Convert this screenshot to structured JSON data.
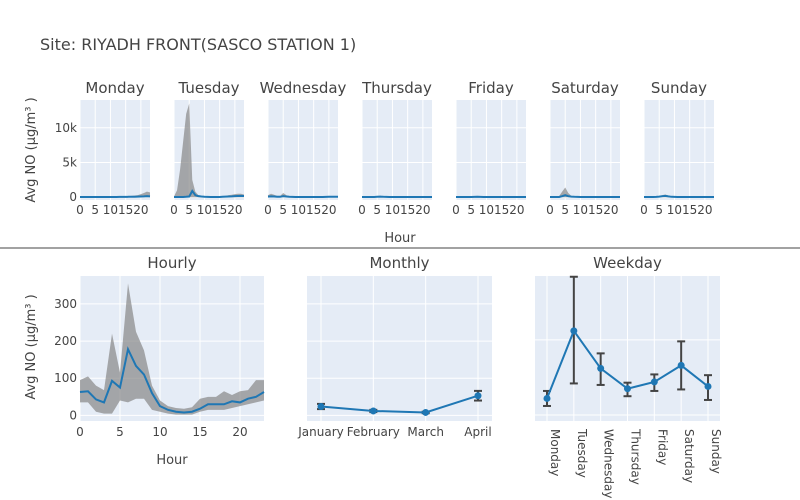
{
  "title": "Site: RIYADH FRONT(SASCO STATION 1)",
  "colors": {
    "plot_bg": "#e5ecf6",
    "grid": "#ffffff",
    "line": "#1f77b4",
    "band": "#888888",
    "error": "#444444",
    "divider": "#444444"
  },
  "chart_data": [
    {
      "type": "line",
      "layout": "small-multiples",
      "ylabel": "Avg NO (µg/m³ )",
      "xlabel": "Hour",
      "x_ticks": [
        0,
        5,
        10,
        15,
        20
      ],
      "y_ticks": [
        0,
        5000,
        10000
      ],
      "y_tick_labels": [
        "0",
        "5k",
        "10k"
      ],
      "ylim": [
        -400,
        14000
      ],
      "xlim": [
        0,
        23
      ],
      "panels": [
        {
          "name": "Monday",
          "values": [
            40,
            40,
            40,
            40,
            40,
            40,
            40,
            40,
            40,
            40,
            40,
            40,
            40,
            50,
            50,
            50,
            60,
            60,
            60,
            80,
            100,
            120,
            150,
            120
          ],
          "upper": [
            80,
            80,
            80,
            80,
            80,
            80,
            80,
            80,
            80,
            80,
            80,
            80,
            80,
            100,
            100,
            120,
            150,
            200,
            250,
            300,
            450,
            600,
            800,
            700
          ],
          "lower": [
            0,
            0,
            0,
            0,
            0,
            0,
            0,
            0,
            0,
            0,
            0,
            0,
            0,
            0,
            0,
            0,
            0,
            0,
            0,
            0,
            0,
            0,
            0,
            0
          ]
        },
        {
          "name": "Tuesday",
          "values": [
            40,
            40,
            40,
            40,
            60,
            100,
            900,
            300,
            150,
            100,
            60,
            50,
            40,
            40,
            40,
            40,
            60,
            80,
            100,
            120,
            150,
            180,
            200,
            180
          ],
          "upper": [
            100,
            1000,
            4000,
            8000,
            12000,
            13500,
            2500,
            800,
            300,
            200,
            120,
            80,
            60,
            60,
            60,
            80,
            150,
            200,
            300,
            350,
            450,
            500,
            500,
            400
          ],
          "lower": [
            0,
            0,
            0,
            0,
            0,
            0,
            0,
            0,
            0,
            0,
            0,
            0,
            0,
            0,
            0,
            0,
            0,
            0,
            0,
            0,
            0,
            0,
            0,
            0
          ]
        },
        {
          "name": "Wednesday",
          "values": [
            80,
            120,
            100,
            60,
            60,
            150,
            100,
            60,
            50,
            40,
            40,
            30,
            30,
            30,
            30,
            30,
            40,
            40,
            40,
            50,
            60,
            60,
            60,
            60
          ],
          "upper": [
            300,
            500,
            350,
            200,
            200,
            600,
            300,
            150,
            100,
            80,
            80,
            60,
            60,
            60,
            60,
            60,
            80,
            80,
            80,
            100,
            120,
            120,
            120,
            120
          ],
          "lower": [
            0,
            0,
            0,
            0,
            0,
            0,
            0,
            0,
            0,
            0,
            0,
            0,
            0,
            0,
            0,
            0,
            0,
            0,
            0,
            0,
            0,
            0,
            0,
            0
          ]
        },
        {
          "name": "Thursday",
          "values": [
            40,
            40,
            40,
            40,
            40,
            60,
            80,
            60,
            50,
            40,
            40,
            40,
            30,
            30,
            30,
            30,
            30,
            40,
            40,
            40,
            40,
            40,
            40,
            40
          ],
          "upper": [
            80,
            80,
            80,
            80,
            80,
            150,
            200,
            150,
            100,
            80,
            80,
            80,
            60,
            60,
            60,
            60,
            60,
            80,
            80,
            80,
            80,
            80,
            80,
            80
          ],
          "lower": [
            0,
            0,
            0,
            0,
            0,
            0,
            0,
            0,
            0,
            0,
            0,
            0,
            0,
            0,
            0,
            0,
            0,
            0,
            0,
            0,
            0,
            0,
            0,
            0
          ]
        },
        {
          "name": "Friday",
          "values": [
            40,
            40,
            40,
            40,
            40,
            40,
            50,
            60,
            50,
            40,
            40,
            40,
            30,
            30,
            30,
            30,
            30,
            40,
            40,
            40,
            40,
            40,
            40,
            40
          ],
          "upper": [
            80,
            80,
            80,
            80,
            80,
            80,
            100,
            150,
            100,
            80,
            80,
            80,
            60,
            60,
            60,
            60,
            60,
            80,
            80,
            80,
            80,
            80,
            80,
            80
          ],
          "lower": [
            0,
            0,
            0,
            0,
            0,
            0,
            0,
            0,
            0,
            0,
            0,
            0,
            0,
            0,
            0,
            0,
            0,
            0,
            0,
            0,
            0,
            0,
            0,
            0
          ]
        },
        {
          "name": "Saturday",
          "values": [
            40,
            40,
            40,
            40,
            150,
            300,
            150,
            80,
            60,
            50,
            40,
            40,
            40,
            30,
            30,
            30,
            30,
            40,
            40,
            40,
            40,
            40,
            40,
            40
          ],
          "upper": [
            80,
            80,
            80,
            150,
            800,
            1400,
            600,
            200,
            150,
            100,
            80,
            80,
            80,
            60,
            60,
            60,
            60,
            80,
            80,
            80,
            80,
            80,
            80,
            80
          ],
          "lower": [
            0,
            0,
            0,
            0,
            0,
            0,
            0,
            0,
            0,
            0,
            0,
            0,
            0,
            0,
            0,
            0,
            0,
            0,
            0,
            0,
            0,
            0,
            0,
            0
          ]
        },
        {
          "name": "Sunday",
          "values": [
            40,
            40,
            40,
            40,
            50,
            80,
            150,
            200,
            120,
            60,
            50,
            40,
            40,
            30,
            30,
            30,
            30,
            40,
            40,
            40,
            40,
            40,
            40,
            40
          ],
          "upper": [
            80,
            80,
            80,
            80,
            100,
            150,
            300,
            400,
            250,
            120,
            100,
            80,
            80,
            60,
            60,
            60,
            60,
            80,
            80,
            80,
            80,
            80,
            80,
            80
          ],
          "lower": [
            0,
            0,
            0,
            0,
            0,
            0,
            0,
            0,
            0,
            0,
            0,
            0,
            0,
            0,
            0,
            0,
            0,
            0,
            0,
            0,
            0,
            0,
            0,
            0
          ]
        }
      ]
    },
    {
      "type": "line",
      "title": "Hourly",
      "xlabel": "Hour",
      "ylabel": "Avg NO (µg/m³ )",
      "x": [
        0,
        1,
        2,
        3,
        4,
        5,
        6,
        7,
        8,
        9,
        10,
        11,
        12,
        13,
        14,
        15,
        16,
        17,
        18,
        19,
        20,
        21,
        22,
        23
      ],
      "values": [
        63,
        65,
        43,
        35,
        93,
        75,
        178,
        133,
        110,
        60,
        25,
        15,
        10,
        8,
        10,
        18,
        30,
        30,
        30,
        38,
        35,
        45,
        50,
        63
      ],
      "upper": [
        95,
        105,
        80,
        68,
        220,
        115,
        355,
        225,
        175,
        80,
        40,
        25,
        20,
        18,
        22,
        45,
        50,
        50,
        65,
        55,
        65,
        68,
        95,
        95
      ],
      "lower": [
        35,
        35,
        10,
        5,
        5,
        40,
        35,
        45,
        45,
        15,
        10,
        5,
        2,
        2,
        2,
        10,
        15,
        15,
        15,
        20,
        25,
        30,
        35,
        40
      ],
      "x_ticks": [
        0,
        5,
        10,
        15,
        20
      ],
      "y_ticks": [
        0,
        100,
        200,
        300
      ],
      "xlim": [
        0,
        23
      ],
      "ylim": [
        -15,
        375
      ]
    },
    {
      "type": "line",
      "title": "Monthly",
      "categories": [
        "January",
        "February",
        "March",
        "April"
      ],
      "values": [
        24,
        12,
        8,
        53
      ],
      "err_low": [
        7,
        3,
        2,
        13
      ],
      "err_high": [
        7,
        3,
        2,
        13
      ],
      "ylim": [
        -15,
        375
      ]
    },
    {
      "type": "line",
      "title": "Weekday",
      "categories": [
        "Monday",
        "Tuesday",
        "Wednesday",
        "Thursday",
        "Friday",
        "Saturday",
        "Sunday"
      ],
      "values": [
        22,
        112,
        62,
        35,
        44,
        66,
        38
      ],
      "err_low": [
        10,
        70,
        22,
        10,
        12,
        32,
        18
      ],
      "err_high": [
        10,
        72,
        20,
        8,
        10,
        32,
        15
      ],
      "ylim": [
        -8,
        185
      ]
    }
  ]
}
